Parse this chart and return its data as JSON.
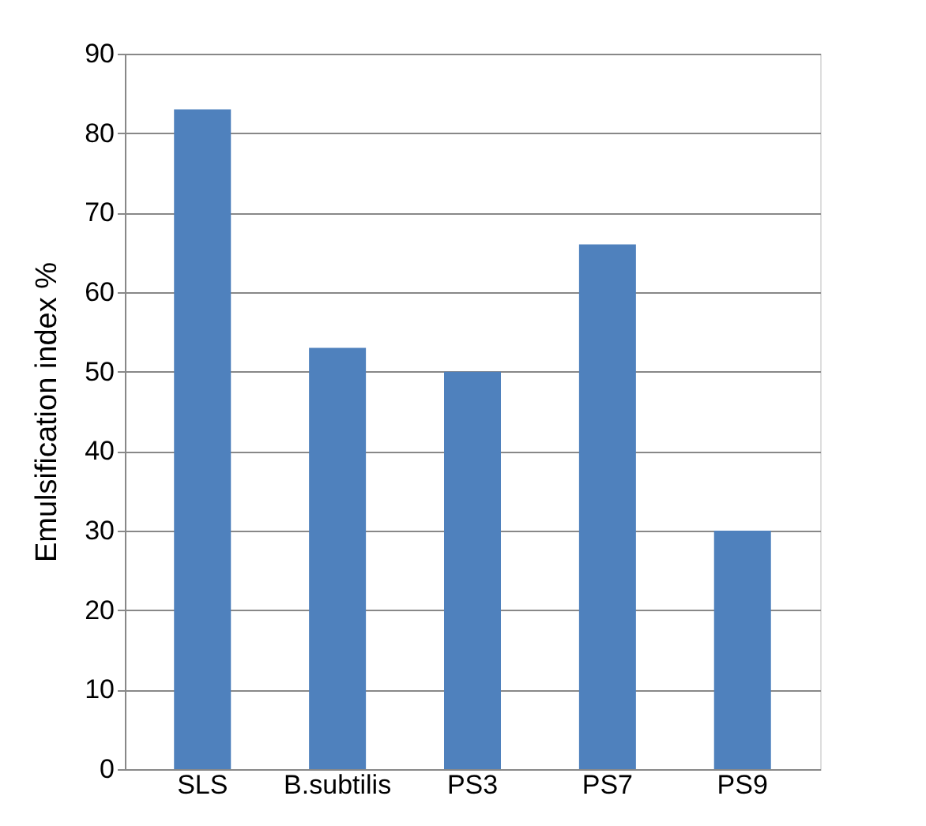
{
  "chart_data": {
    "type": "bar",
    "ylabel": "Emulsification index %",
    "categories": [
      "SLS",
      "B.subtilis",
      "PS3",
      "PS7",
      "PS9"
    ],
    "values": [
      83,
      53,
      50,
      66,
      30
    ],
    "color": "#4f81bd",
    "ylim": [
      0,
      90
    ],
    "yticks": [
      0,
      10,
      20,
      30,
      40,
      50,
      60,
      70,
      80,
      90
    ],
    "grid": "y"
  }
}
